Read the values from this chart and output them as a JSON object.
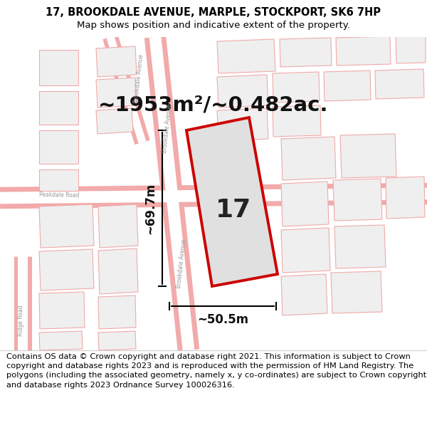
{
  "title_line1": "17, BROOKDALE AVENUE, MARPLE, STOCKPORT, SK6 7HP",
  "title_line2": "Map shows position and indicative extent of the property.",
  "area_text": "~1953m²/~0.482ac.",
  "number_label": "17",
  "width_label": "~50.5m",
  "height_label": "~69.7m",
  "footer_text": "Contains OS data © Crown copyright and database right 2021. This information is subject to Crown copyright and database rights 2023 and is reproduced with the permission of HM Land Registry. The polygons (including the associated geometry, namely x, y co-ordinates) are subject to Crown copyright and database rights 2023 Ordnance Survey 100026316.",
  "map_bg": "#ffffff",
  "property_fill": "#e0e0e0",
  "property_outline": "#cc0000",
  "road_outer": "#f2aaaa",
  "road_inner": "#ffffff",
  "bld_fill": "#efefef",
  "bld_edge": "#f0aaaa",
  "title_fontsize": 10.5,
  "subtitle_fontsize": 9.5,
  "area_fontsize": 21,
  "number_fontsize": 26,
  "dim_fontsize": 12,
  "footer_fontsize": 8.2,
  "fig_width": 6.0,
  "fig_height": 6.25
}
